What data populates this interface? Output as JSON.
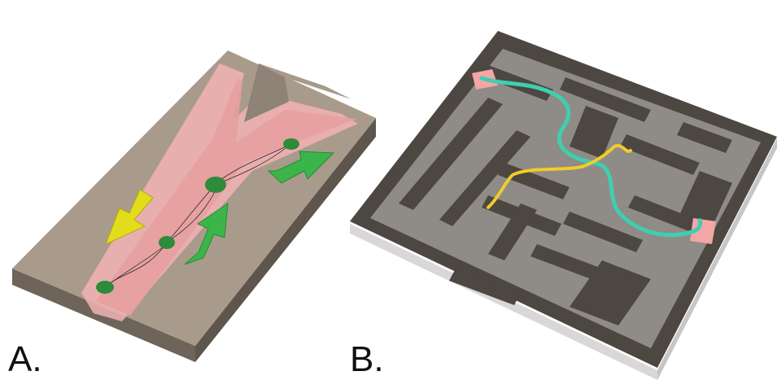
{
  "panels": [
    {
      "id": "a",
      "label": "A."
    },
    {
      "id": "b",
      "label": "B."
    }
  ],
  "colors": {
    "chip_top": "#a99b8c",
    "chip_side": "#6f645a",
    "channel_glow": "#f2b3b3",
    "bacteria_green": "#2e8b3a",
    "arrow_green": "#3bb54a",
    "arrow_yellow": "#e3dc1c",
    "maze_wall": "#4c4741",
    "maze_floor": "#8f8b86",
    "maze_base": "#d9d7d7",
    "fungus_teal": "#3fcfb0",
    "fungus_yellow": "#f2cc2a",
    "maze_endpoint": "#f2a6a6"
  }
}
